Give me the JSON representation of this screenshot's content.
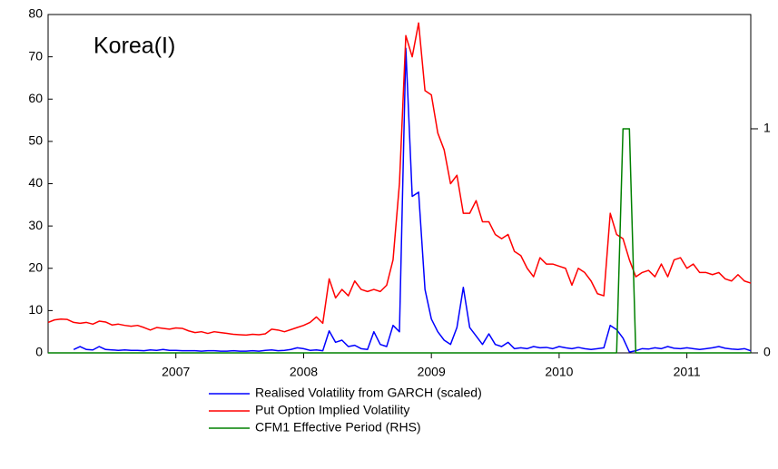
{
  "chart_data": {
    "type": "line",
    "annotation": "Korea(I)",
    "x": [
      2006,
      2006.05,
      2006.1,
      2006.15,
      2006.2,
      2006.25,
      2006.3,
      2006.35,
      2006.4,
      2006.45,
      2006.5,
      2006.55,
      2006.6,
      2006.65,
      2006.7,
      2006.75,
      2006.8,
      2006.85,
      2006.9,
      2006.95,
      2007,
      2007.05,
      2007.1,
      2007.15,
      2007.2,
      2007.25,
      2007.3,
      2007.35,
      2007.4,
      2007.45,
      2007.5,
      2007.55,
      2007.6,
      2007.65,
      2007.7,
      2007.75,
      2007.8,
      2007.85,
      2007.9,
      2007.95,
      2008,
      2008.05,
      2008.1,
      2008.15,
      2008.2,
      2008.25,
      2008.3,
      2008.35,
      2008.4,
      2008.45,
      2008.5,
      2008.55,
      2008.6,
      2008.65,
      2008.7,
      2008.75,
      2008.8,
      2008.85,
      2008.9,
      2008.95,
      2009,
      2009.05,
      2009.1,
      2009.15,
      2009.2,
      2009.25,
      2009.3,
      2009.35,
      2009.4,
      2009.45,
      2009.5,
      2009.55,
      2009.6,
      2009.65,
      2009.7,
      2009.75,
      2009.8,
      2009.85,
      2009.9,
      2009.95,
      2010,
      2010.05,
      2010.1,
      2010.15,
      2010.2,
      2010.25,
      2010.3,
      2010.35,
      2010.4,
      2010.45,
      2010.5,
      2010.55,
      2010.6,
      2010.65,
      2010.7,
      2010.75,
      2010.8,
      2010.85,
      2010.9,
      2010.95,
      2011,
      2011.05,
      2011.1,
      2011.15,
      2011.2,
      2011.25,
      2011.3,
      2011.35,
      2011.4,
      2011.45,
      2011.5
    ],
    "series": [
      {
        "name": "Realised Volatility from GARCH (scaled)",
        "color": "#0000ff",
        "values": [
          null,
          null,
          null,
          null,
          0.8,
          1.5,
          0.8,
          0.7,
          1.5,
          0.8,
          0.7,
          0.6,
          0.7,
          0.6,
          0.6,
          0.5,
          0.7,
          0.6,
          0.8,
          0.6,
          0.6,
          0.5,
          0.5,
          0.5,
          0.4,
          0.5,
          0.5,
          0.4,
          0.4,
          0.5,
          0.4,
          0.4,
          0.5,
          0.4,
          0.6,
          0.7,
          0.5,
          0.6,
          0.8,
          1.2,
          1,
          0.6,
          0.7,
          0.5,
          5.2,
          2.5,
          3,
          1.5,
          1.8,
          1,
          0.8,
          5,
          2,
          1.5,
          6.5,
          5,
          72,
          37,
          38,
          15,
          8,
          5,
          3,
          2,
          6,
          15.5,
          6,
          4,
          2,
          4.5,
          2,
          1.5,
          2.5,
          1,
          1.2,
          1,
          1.5,
          1.2,
          1.3,
          1,
          1.5,
          1.2,
          1,
          1.3,
          1,
          0.8,
          1,
          1.2,
          6.5,
          5.5,
          3.5,
          0.2,
          0.5,
          1,
          0.9,
          1.2,
          1,
          1.5,
          1.1,
          1,
          1.2,
          1,
          0.8,
          1,
          1.2,
          1.5,
          1.1,
          0.9,
          0.8,
          1,
          0.5
        ]
      },
      {
        "name": "Put Option Implied Volatility",
        "color": "#ff0000",
        "values": [
          7.2,
          7.8,
          8,
          7.9,
          7.2,
          7,
          7.2,
          6.8,
          7.5,
          7.3,
          6.6,
          6.8,
          6.5,
          6.3,
          6.5,
          6,
          5.4,
          6,
          5.8,
          5.6,
          5.9,
          5.8,
          5.2,
          4.8,
          5,
          4.6,
          5,
          4.8,
          4.6,
          4.4,
          4.3,
          4.2,
          4.4,
          4.3,
          4.5,
          5.6,
          5.4,
          5,
          5.5,
          6,
          6.5,
          7.2,
          8.5,
          7,
          17.5,
          13,
          15,
          13.5,
          17,
          15,
          14.5,
          15,
          14.5,
          16,
          22,
          40,
          75,
          70,
          78,
          62,
          61,
          52,
          48,
          40,
          42,
          33,
          33,
          36,
          31,
          31,
          28,
          27,
          28,
          24,
          23,
          20,
          18,
          22.5,
          21,
          21,
          20.5,
          20,
          16,
          20,
          19,
          17,
          14,
          13.5,
          33,
          28,
          27,
          22,
          18,
          19,
          19.5,
          18,
          21,
          18,
          22,
          22.5,
          20,
          21,
          19,
          19,
          18.5,
          19,
          17.5,
          17,
          18.5,
          17,
          16.5
        ]
      },
      {
        "name": "CFM1 Effective Period (RHS)",
        "color": "#008000",
        "axis": "y2",
        "values": [
          0,
          0,
          0,
          0,
          0,
          0,
          0,
          0,
          0,
          0,
          0,
          0,
          0,
          0,
          0,
          0,
          0,
          0,
          0,
          0,
          0,
          0,
          0,
          0,
          0,
          0,
          0,
          0,
          0,
          0,
          0,
          0,
          0,
          0,
          0,
          0,
          0,
          0,
          0,
          0,
          0,
          0,
          0,
          0,
          0,
          0,
          0,
          0,
          0,
          0,
          0,
          0,
          0,
          0,
          0,
          0,
          0,
          0,
          0,
          0,
          0,
          0,
          0,
          0,
          0,
          0,
          0,
          0,
          0,
          0,
          0,
          0,
          0,
          0,
          0,
          0,
          0,
          0,
          0,
          0,
          0,
          0,
          0,
          0,
          0,
          0,
          0,
          0,
          0,
          0,
          1,
          1,
          0,
          0,
          0,
          0,
          0,
          0,
          0,
          0,
          0,
          0,
          0,
          0,
          0,
          0,
          0,
          0,
          0,
          0,
          0
        ]
      }
    ],
    "xlim": [
      2006,
      2011.5
    ],
    "xticks": [
      2007,
      2008,
      2009,
      2010,
      2011
    ],
    "ylim": [
      0,
      80
    ],
    "yticks": [
      0,
      10,
      20,
      30,
      40,
      50,
      60,
      70,
      80
    ],
    "y2lim": [
      0,
      1.51
    ],
    "y2ticks": [
      0,
      1
    ],
    "grid": false
  }
}
